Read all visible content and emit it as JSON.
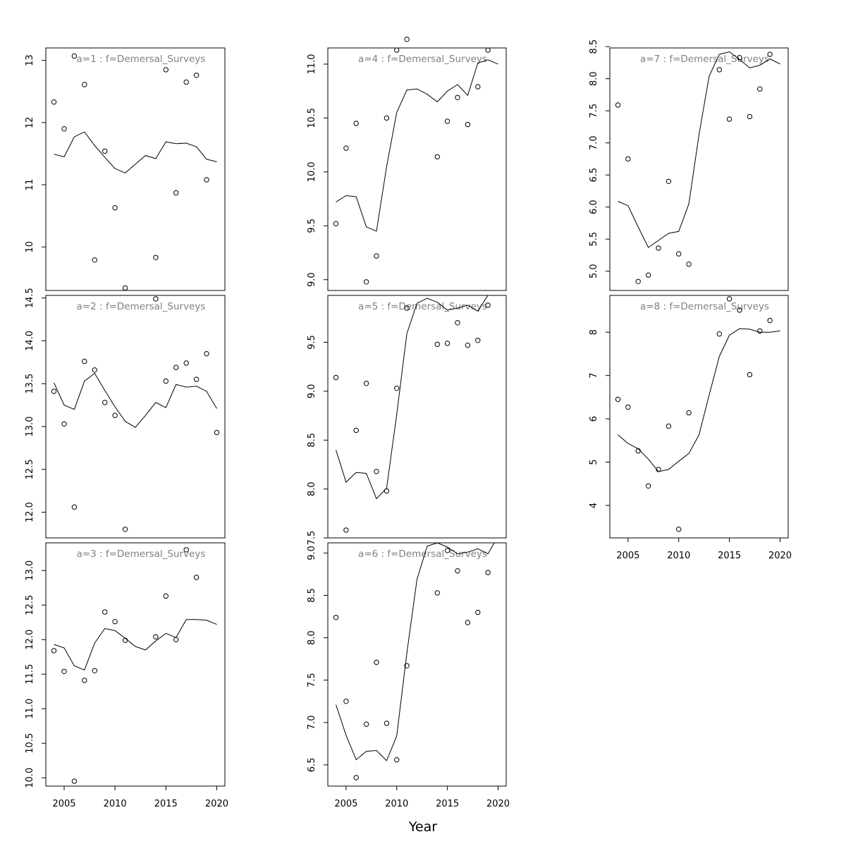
{
  "chart_data": {
    "type": "scatter",
    "xlabel": "Year",
    "x_ticks": [
      2005,
      2010,
      2015,
      2020
    ],
    "xlim": [
      2003.2,
      2020.8
    ],
    "panels": [
      {
        "title": "a=1  :  f=Demersal_Surveys",
        "ylim": [
          9.3,
          13.2
        ],
        "y_ticks": [
          10,
          11,
          12,
          13
        ],
        "fitted": {
          "x": [
            2004,
            2005,
            2006,
            2007,
            2008,
            2009,
            2010,
            2011,
            2012,
            2013,
            2014,
            2015,
            2016,
            2017,
            2018,
            2019,
            2020
          ],
          "y": [
            11.49,
            11.45,
            11.77,
            11.85,
            11.63,
            11.44,
            11.26,
            11.19,
            11.33,
            11.47,
            11.42,
            11.69,
            11.66,
            11.67,
            11.61,
            11.41,
            11.37
          ]
        },
        "observed": {
          "x": [
            2004,
            2005,
            2006,
            2007,
            2008,
            2009,
            2010,
            2011,
            2014,
            2015,
            2016,
            2017,
            2018,
            2019
          ],
          "y": [
            12.33,
            11.9,
            13.07,
            12.61,
            9.79,
            11.54,
            10.63,
            9.34,
            9.83,
            12.85,
            10.87,
            12.65,
            12.76,
            11.08
          ]
        }
      },
      {
        "title": "a=4  :  f=Demersal_Surveys",
        "ylim": [
          8.9,
          11.15
        ],
        "y_ticks": [
          9.0,
          9.5,
          10.0,
          10.5,
          11.0
        ],
        "fitted": {
          "x": [
            2004,
            2005,
            2006,
            2007,
            2008,
            2009,
            2010,
            2011,
            2012,
            2013,
            2014,
            2015,
            2016,
            2017,
            2018,
            2019,
            2020
          ],
          "y": [
            9.72,
            9.78,
            9.77,
            9.49,
            9.45,
            10.05,
            10.55,
            10.76,
            10.77,
            10.72,
            10.65,
            10.75,
            10.81,
            10.71,
            11.01,
            11.04,
            11.0
          ]
        },
        "observed": {
          "x": [
            2004,
            2005,
            2006,
            2007,
            2008,
            2009,
            2010,
            2011,
            2014,
            2015,
            2016,
            2017,
            2018,
            2019
          ],
          "y": [
            9.52,
            10.22,
            10.45,
            8.98,
            9.22,
            10.5,
            11.13,
            11.23,
            10.14,
            10.47,
            10.69,
            10.44,
            10.79,
            11.13
          ]
        }
      },
      {
        "title": "a=7  :  f=Demersal_Surveys",
        "ylim": [
          4.7,
          8.48
        ],
        "y_ticks": [
          5.0,
          5.5,
          6.0,
          6.5,
          7.0,
          7.5,
          8.0,
          8.5
        ],
        "fitted": {
          "x": [
            2004,
            2005,
            2006,
            2007,
            2008,
            2009,
            2010,
            2011,
            2012,
            2013,
            2014,
            2015,
            2016,
            2017,
            2018,
            2019,
            2020
          ],
          "y": [
            6.09,
            6.02,
            5.69,
            5.37,
            5.48,
            5.59,
            5.62,
            6.05,
            7.13,
            8.04,
            8.38,
            8.42,
            8.3,
            8.17,
            8.21,
            8.31,
            8.23
          ]
        },
        "observed": {
          "x": [
            2004,
            2005,
            2006,
            2007,
            2008,
            2009,
            2010,
            2011,
            2014,
            2015,
            2016,
            2017,
            2018,
            2019
          ],
          "y": [
            7.59,
            6.75,
            4.84,
            4.94,
            5.36,
            6.4,
            5.27,
            5.11,
            8.14,
            7.37,
            8.33,
            7.41,
            7.84,
            8.38
          ]
        }
      },
      {
        "title": "a=2  :  f=Demersal_Surveys",
        "ylim": [
          11.7,
          14.53
        ],
        "y_ticks": [
          12.0,
          12.5,
          13.0,
          13.5,
          14.0,
          14.5
        ],
        "fitted": {
          "x": [
            2004,
            2005,
            2006,
            2007,
            2008,
            2009,
            2010,
            2011,
            2012,
            2013,
            2014,
            2015,
            2016,
            2017,
            2018,
            2019,
            2020
          ],
          "y": [
            13.51,
            13.25,
            13.2,
            13.53,
            13.62,
            13.42,
            13.23,
            13.06,
            12.99,
            13.13,
            13.28,
            13.22,
            13.49,
            13.46,
            13.47,
            13.41,
            13.21
          ]
        },
        "observed": {
          "x": [
            2004,
            2005,
            2006,
            2007,
            2008,
            2009,
            2010,
            2011,
            2014,
            2015,
            2016,
            2017,
            2018,
            2019,
            2020
          ],
          "y": [
            13.41,
            13.03,
            12.06,
            13.76,
            13.66,
            13.28,
            13.13,
            11.8,
            14.49,
            13.53,
            13.69,
            13.74,
            13.55,
            13.85,
            12.93
          ]
        }
      },
      {
        "title": "a=5  :  f=Demersal_Surveys",
        "ylim": [
          7.5,
          9.98
        ],
        "y_ticks": [
          7.5,
          8.0,
          8.5,
          9.0,
          9.5
        ],
        "fitted": {
          "x": [
            2004,
            2005,
            2006,
            2007,
            2008,
            2009,
            2010,
            2011,
            2012,
            2013,
            2014,
            2015,
            2016,
            2017,
            2018,
            2019,
            2020
          ],
          "y": [
            8.4,
            8.07,
            8.17,
            8.16,
            7.9,
            8.01,
            8.76,
            9.59,
            9.9,
            9.95,
            9.91,
            9.83,
            9.85,
            9.88,
            9.82,
            9.98,
            10.15
          ]
        },
        "observed": {
          "x": [
            2004,
            2005,
            2006,
            2007,
            2008,
            2009,
            2010,
            2011,
            2014,
            2015,
            2016,
            2017,
            2018,
            2019
          ],
          "y": [
            9.14,
            7.58,
            8.6,
            9.08,
            8.18,
            7.98,
            9.03,
            9.85,
            9.48,
            9.49,
            9.7,
            9.47,
            9.52,
            9.88
          ]
        }
      },
      {
        "title": "a=8  :  f=Demersal_Surveys",
        "ylim": [
          3.25,
          8.85
        ],
        "y_ticks": [
          4,
          5,
          6,
          7,
          8
        ],
        "fitted": {
          "x": [
            2004,
            2005,
            2006,
            2007,
            2008,
            2009,
            2010,
            2011,
            2012,
            2013,
            2014,
            2015,
            2016,
            2017,
            2018,
            2019,
            2020
          ],
          "y": [
            5.63,
            5.43,
            5.31,
            5.07,
            4.78,
            4.83,
            5.02,
            5.2,
            5.63,
            6.55,
            7.44,
            7.93,
            8.08,
            8.07,
            8.0,
            8.0,
            8.03
          ]
        },
        "observed": {
          "x": [
            2004,
            2005,
            2006,
            2007,
            2008,
            2009,
            2010,
            2011,
            2014,
            2015,
            2016,
            2017,
            2018,
            2019
          ],
          "y": [
            6.45,
            6.27,
            5.26,
            4.45,
            4.83,
            5.83,
            3.45,
            6.14,
            7.96,
            8.77,
            8.51,
            7.02,
            8.03,
            8.27
          ]
        }
      },
      {
        "title": "a=3  :  f=Demersal_Surveys",
        "ylim": [
          9.88,
          13.4
        ],
        "y_ticks": [
          10.0,
          10.5,
          11.0,
          11.5,
          12.0,
          12.5,
          13.0
        ],
        "fitted": {
          "x": [
            2004,
            2005,
            2006,
            2007,
            2008,
            2009,
            2010,
            2011,
            2012,
            2013,
            2014,
            2015,
            2016,
            2017,
            2018,
            2019,
            2020
          ],
          "y": [
            11.93,
            11.88,
            11.62,
            11.56,
            11.95,
            12.16,
            12.13,
            12.02,
            11.9,
            11.85,
            11.98,
            12.09,
            12.03,
            12.29,
            12.29,
            12.28,
            12.22
          ]
        },
        "observed": {
          "x": [
            2004,
            2005,
            2006,
            2007,
            2008,
            2009,
            2010,
            2011,
            2014,
            2015,
            2016,
            2017,
            2018
          ],
          "y": [
            11.84,
            11.54,
            9.95,
            11.41,
            11.55,
            12.4,
            12.26,
            11.99,
            12.04,
            12.63,
            12.0,
            13.3,
            12.9
          ]
        }
      },
      {
        "title": "a=6  :  f=Demersal_Surveys",
        "ylim": [
          6.25,
          9.12
        ],
        "y_ticks": [
          6.5,
          7.0,
          7.5,
          8.0,
          8.5,
          9.0
        ],
        "fitted": {
          "x": [
            2004,
            2005,
            2006,
            2007,
            2008,
            2009,
            2010,
            2011,
            2012,
            2013,
            2014,
            2015,
            2016,
            2017,
            2018,
            2019,
            2020
          ],
          "y": [
            7.21,
            6.85,
            6.56,
            6.66,
            6.67,
            6.55,
            6.84,
            7.82,
            8.69,
            9.08,
            9.12,
            9.07,
            8.99,
            9.01,
            9.05,
            8.99,
            9.2
          ]
        },
        "observed": {
          "x": [
            2004,
            2005,
            2006,
            2007,
            2008,
            2009,
            2010,
            2011,
            2014,
            2015,
            2016,
            2017,
            2018,
            2019
          ],
          "y": [
            8.24,
            7.25,
            6.35,
            6.98,
            7.71,
            6.99,
            6.56,
            7.67,
            8.53,
            9.03,
            8.79,
            8.18,
            8.3,
            8.77
          ]
        }
      }
    ]
  }
}
